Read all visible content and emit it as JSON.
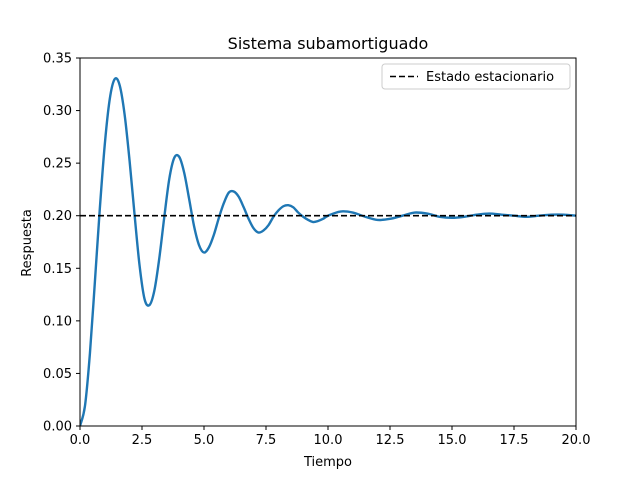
{
  "chart_data": {
    "type": "line",
    "title": "Sistema subamortiguado",
    "xlabel": "Tiempo",
    "ylabel": "Respuesta",
    "xlim": [
      0,
      20
    ],
    "ylim": [
      0,
      0.35
    ],
    "xticks": [
      0,
      2.5,
      5,
      7.5,
      10,
      12.5,
      15,
      17.5,
      20
    ],
    "xtick_labels": [
      "0.0",
      "2.5",
      "5.0",
      "7.5",
      "10.0",
      "12.5",
      "15.0",
      "17.5",
      "20.0"
    ],
    "yticks": [
      0,
      0.05,
      0.1,
      0.15,
      0.2,
      0.25,
      0.3,
      0.35
    ],
    "ytick_labels": [
      "0.00",
      "0.05",
      "0.10",
      "0.15",
      "0.20",
      "0.25",
      "0.30",
      "0.35"
    ],
    "grid": false,
    "legend_position": "top-right",
    "series": [
      {
        "style": "solid",
        "color": "#1f77b4",
        "x": [
          0,
          0.2,
          0.4,
          0.6,
          0.8,
          1.0,
          1.2,
          1.4,
          1.6,
          1.8,
          2.0,
          2.2,
          2.4,
          2.6,
          2.8,
          3.0,
          3.2,
          3.4,
          3.6,
          3.8,
          4.0,
          4.2,
          4.4,
          4.6,
          4.8,
          5.0,
          5.2,
          5.4,
          5.6,
          5.8,
          6.0,
          6.2,
          6.4,
          6.6,
          6.8,
          7.0,
          7.2,
          7.4,
          7.6,
          7.8,
          8.0,
          8.2,
          8.4,
          8.6,
          8.8,
          9.0,
          9.2,
          9.4,
          9.6,
          9.8,
          10.0,
          10.5,
          11.0,
          11.5,
          12.0,
          12.5,
          13.0,
          13.5,
          14.0,
          14.5,
          15.0,
          15.5,
          16.0,
          16.5,
          17.0,
          17.5,
          18.0,
          18.5,
          19.0,
          19.5,
          20.0
        ],
        "y": [
          0.0,
          0.019,
          0.069,
          0.137,
          0.207,
          0.268,
          0.311,
          0.33,
          0.324,
          0.296,
          0.252,
          0.201,
          0.153,
          0.121,
          0.115,
          0.129,
          0.16,
          0.199,
          0.235,
          0.255,
          0.256,
          0.241,
          0.216,
          0.19,
          0.172,
          0.165,
          0.17,
          0.182,
          0.198,
          0.212,
          0.222,
          0.223,
          0.218,
          0.208,
          0.197,
          0.188,
          0.184,
          0.186,
          0.191,
          0.199,
          0.205,
          0.209,
          0.21,
          0.208,
          0.203,
          0.199,
          0.196,
          0.194,
          0.195,
          0.197,
          0.2,
          0.204,
          0.203,
          0.199,
          0.196,
          0.197,
          0.2,
          0.203,
          0.202,
          0.199,
          0.198,
          0.199,
          0.201,
          0.202,
          0.201,
          0.2,
          0.199,
          0.2,
          0.201,
          0.201,
          0.2
        ]
      },
      {
        "name": "Estado estacionario",
        "style": "dashed",
        "color": "#000000",
        "x": [
          0,
          20
        ],
        "y": [
          0.2,
          0.2
        ]
      }
    ]
  }
}
